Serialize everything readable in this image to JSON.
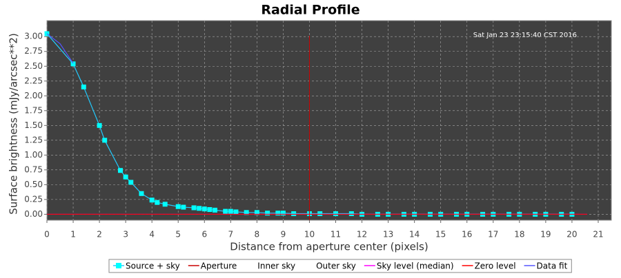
{
  "chart_data": {
    "type": "line",
    "title": "Radial Profile",
    "xlabel": "Distance from aperture center (pixels)",
    "ylabel": "Surface brightness (mJy/arcsec**2)",
    "annotation": "Sat Jan 23 23:15:40 CST 2016",
    "xlim": [
      0,
      21.5
    ],
    "ylim": [
      -0.1,
      3.27
    ],
    "xticks": [
      0,
      1,
      2,
      3,
      4,
      5,
      6,
      7,
      8,
      9,
      10,
      11,
      12,
      13,
      14,
      15,
      16,
      17,
      18,
      19,
      20,
      21
    ],
    "yticks": [
      {
        "value": 0,
        "label": "0.00"
      },
      {
        "value": 0.25,
        "label": "0.25"
      },
      {
        "value": 0.5,
        "label": "0.50"
      },
      {
        "value": 0.75,
        "label": "0.75"
      },
      {
        "value": 1,
        "label": "1.00"
      },
      {
        "value": 1.25,
        "label": "1.25"
      },
      {
        "value": 1.5,
        "label": "1.50"
      },
      {
        "value": 1.75,
        "label": "1.75"
      },
      {
        "value": 2,
        "label": "2.00"
      },
      {
        "value": 2.25,
        "label": "2.25"
      },
      {
        "value": 2.5,
        "label": "2.50"
      },
      {
        "value": 2.75,
        "label": "2.75"
      },
      {
        "value": 3,
        "label": "3.00"
      }
    ],
    "grid": true,
    "series": [
      {
        "name": "Source + sky",
        "color": "#00ffff",
        "x": [
          0,
          1,
          1.4,
          2,
          2.2,
          2.8,
          3,
          3.2,
          3.6,
          4,
          4.2,
          4.5,
          5,
          5.2,
          5.6,
          5.8,
          6,
          6.2,
          6.4,
          6.8,
          7,
          7.2,
          7.6,
          8,
          8.4,
          8.8,
          9,
          9.4,
          10,
          10.4,
          11,
          11.6,
          12,
          12.6,
          13,
          13.6,
          14,
          14.6,
          15,
          15.6,
          16,
          16.6,
          17,
          17.6,
          18,
          18.6,
          19,
          19.6,
          20
        ],
        "values": [
          3.05,
          2.54,
          2.15,
          1.5,
          1.25,
          0.74,
          0.63,
          0.54,
          0.35,
          0.24,
          0.2,
          0.17,
          0.13,
          0.12,
          0.11,
          0.1,
          0.09,
          0.08,
          0.07,
          0.05,
          0.05,
          0.04,
          0.03,
          0.03,
          0.02,
          0.02,
          0.02,
          0.01,
          0.01,
          0.01,
          0.01,
          0.01,
          0,
          0,
          0,
          0,
          0,
          0,
          0,
          0,
          0,
          0,
          0,
          0,
          0,
          0,
          0,
          0,
          0
        ]
      },
      {
        "name": "Aperture",
        "color": "#cc0000",
        "position": 10
      },
      {
        "name": "Inner sky"
      },
      {
        "name": "Outer sky"
      },
      {
        "name": "Sky level (median)",
        "color": "#ff00ff",
        "level": 0
      },
      {
        "name": "Zero level",
        "color": "#ff0000",
        "level": 0
      },
      {
        "name": "Data fit",
        "color": "#5555ff",
        "x": [
          0,
          0.5,
          1
        ],
        "values": [
          3.05,
          2.88,
          2.55
        ]
      }
    ]
  }
}
